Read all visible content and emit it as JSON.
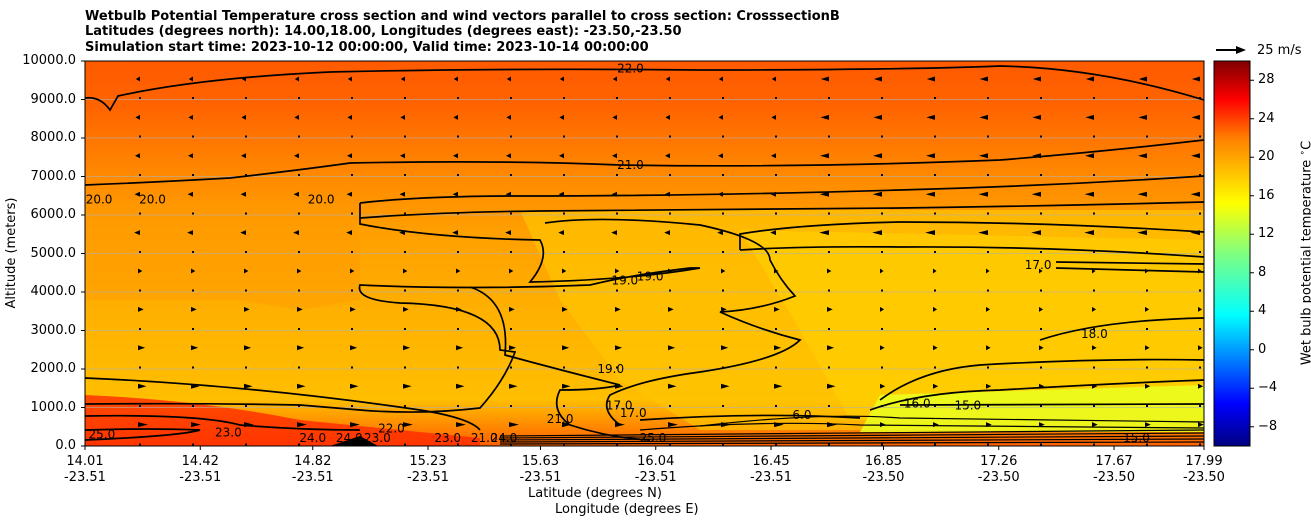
{
  "chart_data": {
    "type": "contour",
    "title": "Wetbulb Potential Temperature cross section and wind vectors parallel to cross section: CrosssectionB",
    "subtitle_coords": "Latitudes (degrees north): 14.00,18.00, Longitudes (degrees east): -23.50,-23.50",
    "subtitle_times": "Simulation start time: 2023-10-12 00:00:00, Valid time: 2023-10-14 00:00:00",
    "ylabel": "Altitude (meters)",
    "xlabel": "Latitude (degrees N)",
    "xlabel2": "Longitude (degrees E)",
    "ylim": [
      0,
      10000
    ],
    "yticks": [
      "0.0",
      "1000.0",
      "2000.0",
      "3000.0",
      "4000.0",
      "5000.0",
      "6000.0",
      "7000.0",
      "8000.0",
      "9000.0",
      "10000.0"
    ],
    "xticks": [
      {
        "lat": "14.01",
        "lon": "-23.51"
      },
      {
        "lat": "14.42",
        "lon": "-23.51"
      },
      {
        "lat": "14.82",
        "lon": "-23.51"
      },
      {
        "lat": "15.23",
        "lon": "-23.51"
      },
      {
        "lat": "15.63",
        "lon": "-23.51"
      },
      {
        "lat": "16.04",
        "lon": "-23.51"
      },
      {
        "lat": "16.45",
        "lon": "-23.51"
      },
      {
        "lat": "16.85",
        "lon": "-23.50"
      },
      {
        "lat": "17.26",
        "lon": "-23.50"
      },
      {
        "lat": "17.67",
        "lon": "-23.50"
      },
      {
        "lat": "17.99",
        "lon": "-23.50"
      }
    ],
    "xlim": [
      14.01,
      17.99
    ],
    "grid": "horizontal",
    "colorbar": {
      "label": "Wet bulb potential temperature $^\\circ$C",
      "range": [
        -10,
        30
      ],
      "ticks": [
        "28",
        "24",
        "20",
        "16",
        "12",
        "8",
        "4",
        "0",
        "−4",
        "−8"
      ],
      "colormap": [
        "#00007f",
        "#0000ff",
        "#007fff",
        "#00ffff",
        "#7fff7f",
        "#ffff00",
        "#ff7f00",
        "#ff0000",
        "#7f0000"
      ]
    },
    "quiver_key": "25 m/s",
    "contour_labels": [
      {
        "text": "22.0",
        "lat": 15.95,
        "alt": 9700
      },
      {
        "text": "21.0",
        "lat": 15.95,
        "alt": 7200
      },
      {
        "text": "20.0",
        "lat": 14.06,
        "alt": 6300
      },
      {
        "text": "20.0",
        "lat": 14.25,
        "alt": 6300
      },
      {
        "text": "20.0",
        "lat": 14.85,
        "alt": 6300
      },
      {
        "text": "19.0",
        "lat": 15.93,
        "alt": 4200
      },
      {
        "text": "19.0",
        "lat": 16.02,
        "alt": 4300
      },
      {
        "text": "19.0",
        "lat": 15.88,
        "alt": 1900
      },
      {
        "text": "17.0",
        "lat": 17.4,
        "alt": 4600
      },
      {
        "text": "18.0",
        "lat": 17.6,
        "alt": 2800
      },
      {
        "text": "17.0",
        "lat": 15.91,
        "alt": 950
      },
      {
        "text": "17.0",
        "lat": 15.96,
        "alt": 750
      },
      {
        "text": "16.0",
        "lat": 16.97,
        "alt": 1000
      },
      {
        "text": "15.0",
        "lat": 17.15,
        "alt": 950
      },
      {
        "text": "21.0",
        "lat": 15.7,
        "alt": 600
      },
      {
        "text": "25.0",
        "lat": 14.07,
        "alt": 200
      },
      {
        "text": "23.0",
        "lat": 14.52,
        "alt": 250
      },
      {
        "text": "24.0",
        "lat": 14.82,
        "alt": 100
      },
      {
        "text": "24.0",
        "lat": 14.95,
        "alt": 100
      },
      {
        "text": "23.0",
        "lat": 15.05,
        "alt": 100
      },
      {
        "text": "22.0",
        "lat": 15.1,
        "alt": 350
      },
      {
        "text": "23.0",
        "lat": 15.3,
        "alt": 100
      },
      {
        "text": "21.0",
        "lat": 15.43,
        "alt": 100
      },
      {
        "text": "24.0",
        "lat": 15.5,
        "alt": 100
      },
      {
        "text": "25.0",
        "lat": 16.03,
        "alt": 100
      },
      {
        "text": "6.0",
        "lat": 16.56,
        "alt": 700
      },
      {
        "text": "15.0",
        "lat": 17.75,
        "alt": 100
      }
    ]
  }
}
